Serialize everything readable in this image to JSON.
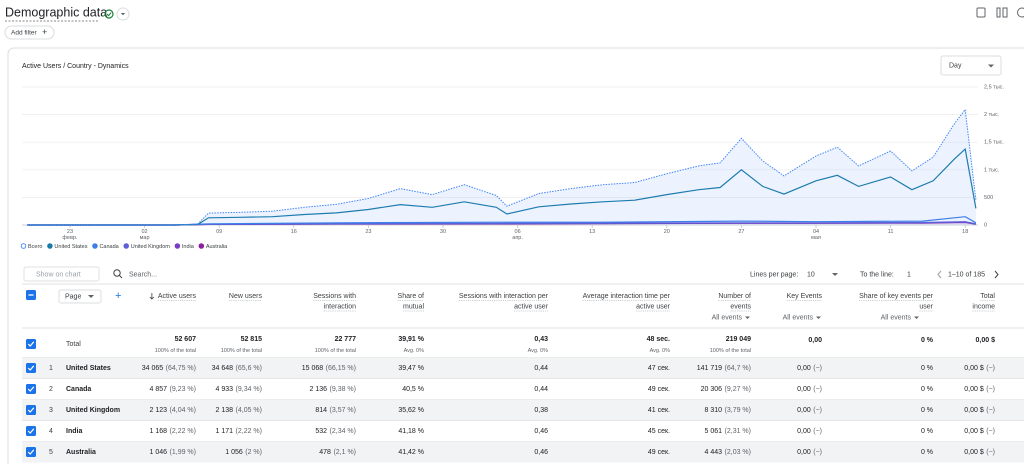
{
  "header": {
    "title": "Demographic data",
    "add_filter": "Add filter"
  },
  "card": {
    "title": "Active Users / Country - Dynamics",
    "period": "Day"
  },
  "chart_data": {
    "type": "line",
    "xlim": [
      -4.5,
      85.2
    ],
    "xticks": [
      {
        "value": 0,
        "label": "23 февр."
      },
      {
        "value": 7,
        "label": "02 мар"
      },
      {
        "value": 14,
        "label": "09"
      },
      {
        "value": 21,
        "label": "16"
      },
      {
        "value": 28,
        "label": "23"
      },
      {
        "value": 35,
        "label": "30"
      },
      {
        "value": 42,
        "label": "06 апр."
      },
      {
        "value": 49,
        "label": "13"
      },
      {
        "value": 56,
        "label": "20"
      },
      {
        "value": 63,
        "label": "27"
      },
      {
        "value": 70,
        "label": "04 мая"
      },
      {
        "value": 77,
        "label": "11"
      },
      {
        "value": 84,
        "label": "18"
      }
    ],
    "ylim": [
      0,
      2500
    ],
    "yticks": [
      0,
      500,
      {
        "value": 1000,
        "label": "1 тыс."
      },
      {
        "value": 1500,
        "label": "1,5 тыс."
      },
      {
        "value": 2000,
        "label": "2 тыс."
      },
      {
        "value": 2500,
        "label": "2,5 тыс."
      }
    ],
    "grid": true,
    "series": [
      {
        "name": "Всего",
        "color": "#4285f4",
        "dashed": true,
        "fill": true,
        "x": [
          -4,
          0,
          5,
          10,
          12,
          13,
          16,
          19,
          22,
          25,
          28,
          31,
          34,
          37,
          40,
          41,
          44,
          47,
          50,
          53,
          56,
          59,
          61,
          63,
          65,
          67,
          70,
          72,
          74,
          77,
          79,
          81,
          83,
          84,
          85
        ],
        "values": [
          0,
          0,
          0,
          0,
          20,
          215,
          230,
          250,
          320,
          375,
          480,
          660,
          550,
          730,
          535,
          340,
          570,
          660,
          730,
          770,
          930,
          1070,
          1125,
          1570,
          1160,
          890,
          1250,
          1410,
          1070,
          1340,
          980,
          1230,
          1840,
          2090,
          450
        ]
      },
      {
        "name": "United States",
        "color": "#1a7ba6",
        "x": [
          -4,
          0,
          5,
          10,
          12,
          13,
          16,
          19,
          22,
          25,
          28,
          31,
          34,
          37,
          40,
          41,
          44,
          47,
          50,
          53,
          56,
          59,
          61,
          63,
          65,
          67,
          70,
          72,
          74,
          77,
          79,
          81,
          83,
          84,
          85
        ],
        "values": [
          0,
          0,
          0,
          0,
          10,
          130,
          140,
          150,
          190,
          220,
          280,
          370,
          320,
          420,
          320,
          200,
          330,
          380,
          420,
          450,
          550,
          640,
          680,
          1000,
          700,
          560,
          800,
          900,
          700,
          870,
          640,
          800,
          1200,
          1375,
          300
        ]
      },
      {
        "name": "Canada",
        "color": "#3f7ee8",
        "x": [
          -4,
          10,
          13,
          25,
          40,
          50,
          63,
          70,
          80,
          84,
          85
        ],
        "values": [
          0,
          0,
          20,
          40,
          50,
          50,
          70,
          60,
          70,
          150,
          40
        ]
      },
      {
        "name": "United Kingdom",
        "color": "#5c5fd6",
        "x": [
          -4,
          10,
          13,
          25,
          40,
          50,
          63,
          70,
          80,
          84,
          85
        ],
        "values": [
          0,
          0,
          15,
          25,
          30,
          35,
          40,
          40,
          45,
          60,
          20
        ]
      },
      {
        "name": "India",
        "color": "#7a3cc8",
        "x": [
          -4,
          10,
          13,
          25,
          40,
          50,
          63,
          70,
          80,
          84,
          85
        ],
        "values": [
          0,
          0,
          10,
          20,
          25,
          30,
          35,
          35,
          40,
          50,
          15
        ]
      },
      {
        "name": "Australia",
        "color": "#8e1e9e",
        "x": [
          -4,
          10,
          13,
          25,
          40,
          50,
          63,
          70,
          80,
          84,
          85
        ],
        "values": [
          0,
          0,
          10,
          18,
          20,
          25,
          30,
          30,
          35,
          45,
          15
        ]
      }
    ]
  },
  "toolbar": {
    "show_on_chart": "Show on chart",
    "search": "Search...",
    "lines_per_page_label": "Lines per page:",
    "lines_per_page": "10",
    "to_line_label": "To the line:",
    "to_line": "1",
    "range": "1–10 of 185"
  },
  "table": {
    "dimension": "Page",
    "columns": [
      {
        "lines": [
          "Active users"
        ],
        "sort": true
      },
      {
        "lines": [
          "New users"
        ]
      },
      {
        "lines": [
          "Sessions with",
          "interaction"
        ]
      },
      {
        "lines": [
          "Share of",
          "mutual"
        ]
      },
      {
        "lines": [
          "Sessions with interaction per",
          "active user"
        ]
      },
      {
        "lines": [
          "Average interaction time per",
          "active user"
        ]
      },
      {
        "lines": [
          "Number of",
          "events"
        ],
        "filter": "All events"
      },
      {
        "lines": [
          "Key Events"
        ],
        "filter": "All events"
      },
      {
        "lines": [
          "Share of key events per",
          "user"
        ],
        "filter": "All events"
      },
      {
        "lines": [
          "Total",
          "income"
        ]
      }
    ],
    "total": {
      "label": "Total",
      "cells": [
        [
          "52 607",
          "100% of the total"
        ],
        [
          "52 815",
          "100% of the total"
        ],
        [
          "22 777",
          "100% of the total"
        ],
        [
          "39,91 %",
          "Avg. 0%"
        ],
        [
          "0,43",
          "Avg. 0%"
        ],
        [
          "48 sec.",
          "Avg. 0%"
        ],
        [
          "219 049",
          "100% of the total"
        ],
        [
          "0,00"
        ],
        [
          "0 %"
        ],
        [
          "0,00 $"
        ]
      ]
    },
    "rows": [
      {
        "index": "1",
        "name": "United States",
        "cells": [
          [
            "34 065",
            "(64,75 %)"
          ],
          [
            "34 648",
            "(65,6 %)"
          ],
          [
            "15 068",
            "(66,15 %)"
          ],
          [
            "39,47 %"
          ],
          [
            "0,44"
          ],
          [
            "47 сек."
          ],
          [
            "141 719",
            "(64,7 %)"
          ],
          [
            "0,00",
            "(−)"
          ],
          [
            "0 %"
          ],
          [
            "0,00 $",
            "(−)"
          ]
        ]
      },
      {
        "index": "2",
        "name": "Canada",
        "cells": [
          [
            "4 857",
            "(9,23 %)"
          ],
          [
            "4 933",
            "(9,34 %)"
          ],
          [
            "2 136",
            "(9,38 %)"
          ],
          [
            "40,5 %"
          ],
          [
            "0,44"
          ],
          [
            "49 сек."
          ],
          [
            "20 306",
            "(9,27 %)"
          ],
          [
            "0,00",
            "(−)"
          ],
          [
            "0 %"
          ],
          [
            "0,00 $",
            "(−)"
          ]
        ]
      },
      {
        "index": "3",
        "name": "United Kingdom",
        "cells": [
          [
            "2 123",
            "(4,04 %)"
          ],
          [
            "2 138",
            "(4,05 %)"
          ],
          [
            "814",
            "(3,57 %)"
          ],
          [
            "35,62 %"
          ],
          [
            "0,38"
          ],
          [
            "41 сек."
          ],
          [
            "8 310",
            "(3,79 %)"
          ],
          [
            "0,00",
            "(−)"
          ],
          [
            "0 %"
          ],
          [
            "0,00 $",
            "(−)"
          ]
        ]
      },
      {
        "index": "4",
        "name": "India",
        "cells": [
          [
            "1 168",
            "(2,22 %)"
          ],
          [
            "1 171",
            "(2,22 %)"
          ],
          [
            "532",
            "(2,34 %)"
          ],
          [
            "41,18 %"
          ],
          [
            "0,46"
          ],
          [
            "45 сек."
          ],
          [
            "5 061",
            "(2,31 %)"
          ],
          [
            "0,00",
            "(−)"
          ],
          [
            "0 %"
          ],
          [
            "0,00 $",
            "(−)"
          ]
        ]
      },
      {
        "index": "5",
        "name": "Australia",
        "cells": [
          [
            "1 046",
            "(1,99 %)"
          ],
          [
            "1 056",
            "(2 %)"
          ],
          [
            "478",
            "(2,1 %)"
          ],
          [
            "41,42 %"
          ],
          [
            "0,46"
          ],
          [
            "49 сек."
          ],
          [
            "4 443",
            "(2,03 %)"
          ],
          [
            "0,00",
            "(−)"
          ],
          [
            "0 %"
          ],
          [
            "0,00 $",
            "(−)"
          ]
        ]
      }
    ]
  }
}
